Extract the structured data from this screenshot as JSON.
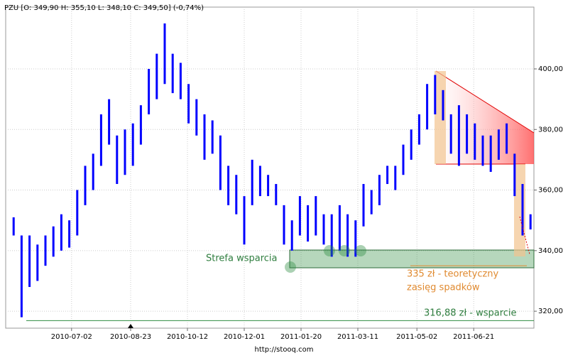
{
  "chart_data": {
    "type": "hlbar",
    "title": "PZU [O: 349,90  H: 355,10  L: 348,10  C: 349,50] (-0,74%)",
    "footer": "http://stooq.com",
    "x": [
      "2010-05-12",
      "2010-05-19",
      "2010-05-26",
      "2010-06-02",
      "2010-06-09",
      "2010-06-16",
      "2010-06-23",
      "2010-06-30",
      "2010-07-07",
      "2010-07-14",
      "2010-07-21",
      "2010-07-28",
      "2010-08-04",
      "2010-08-11",
      "2010-08-18",
      "2010-08-25",
      "2010-09-01",
      "2010-09-08",
      "2010-09-15",
      "2010-09-22",
      "2010-09-29",
      "2010-10-06",
      "2010-10-13",
      "2010-10-20",
      "2010-10-27",
      "2010-11-03",
      "2010-11-10",
      "2010-11-17",
      "2010-11-24",
      "2010-12-01",
      "2010-12-08",
      "2010-12-15",
      "2010-12-22",
      "2010-12-29",
      "2011-01-05",
      "2011-01-12",
      "2011-01-19",
      "2011-01-26",
      "2011-02-02",
      "2011-02-09",
      "2011-02-16",
      "2011-02-23",
      "2011-03-02",
      "2011-03-09",
      "2011-03-16",
      "2011-03-23",
      "2011-03-30",
      "2011-04-06",
      "2011-04-13",
      "2011-04-20",
      "2011-04-27",
      "2011-05-04",
      "2011-05-11",
      "2011-05-18",
      "2011-05-25",
      "2011-06-01",
      "2011-06-08",
      "2011-06-15",
      "2011-06-22",
      "2011-06-29",
      "2011-07-06",
      "2011-07-13",
      "2011-07-20",
      "2011-07-27",
      "2011-08-03",
      "2011-08-10"
    ],
    "high": [
      351,
      345,
      345,
      342,
      345,
      348,
      352,
      350,
      360,
      368,
      372,
      385,
      390,
      378,
      380,
      382,
      388,
      400,
      405,
      415,
      405,
      402,
      395,
      390,
      385,
      383,
      378,
      368,
      365,
      358,
      370,
      368,
      365,
      362,
      355,
      350,
      358,
      355,
      358,
      352,
      352,
      355,
      352,
      350,
      362,
      360,
      365,
      368,
      368,
      375,
      380,
      385,
      395,
      398,
      393,
      385,
      388,
      385,
      382,
      378,
      378,
      380,
      382,
      372,
      362,
      352
    ],
    "low": [
      345,
      318,
      328,
      330,
      335,
      338,
      340,
      341,
      345,
      355,
      360,
      368,
      375,
      362,
      365,
      368,
      375,
      385,
      390,
      395,
      392,
      390,
      382,
      378,
      370,
      372,
      360,
      355,
      352,
      342,
      355,
      358,
      358,
      355,
      342,
      340,
      345,
      343,
      345,
      342,
      338,
      340,
      338,
      338,
      348,
      352,
      355,
      362,
      360,
      365,
      370,
      375,
      380,
      385,
      383,
      372,
      368,
      372,
      370,
      368,
      366,
      370,
      372,
      358,
      345,
      347
    ],
    "color": "#0000ff",
    "xlim": [
      "2010-05-05",
      "2011-08-13"
    ],
    "xticks": [
      "2010-07-02",
      "2010-08-23",
      "2010-10-12",
      "2010-12-01",
      "2011-01-20",
      "2011-03-11",
      "2011-05-02",
      "2011-06-21"
    ],
    "ylim": [
      314.4,
      420.4
    ],
    "yticks": [
      {
        "value": 320,
        "label": "320,00"
      },
      {
        "value": 340,
        "label": "340,00"
      },
      {
        "value": 360,
        "label": "360,00"
      },
      {
        "value": 380,
        "label": "380,00"
      },
      {
        "value": 400,
        "label": "400,00"
      }
    ],
    "grid": true,
    "support_level": 316.88,
    "support_label": "316,88 zł - wsparcie",
    "target_level": 335,
    "target_label_1": "335 zł - teoretyczny",
    "target_label_2": "zasięg spadków",
    "zone_label": "Strefa wsparcia"
  }
}
